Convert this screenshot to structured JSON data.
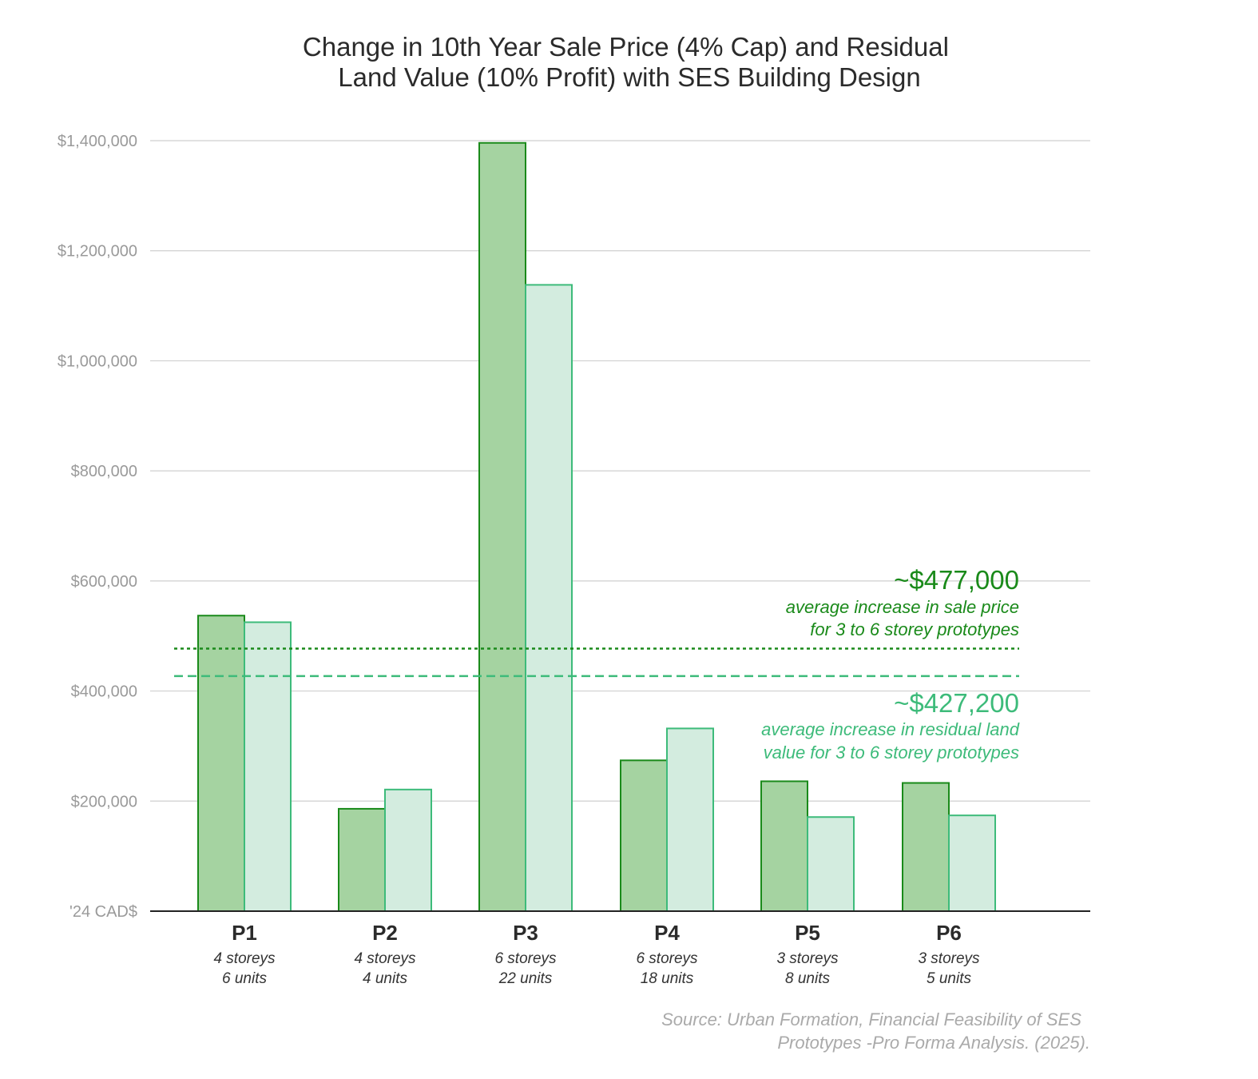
{
  "chart_data": {
    "type": "bar",
    "title": "Change in 10th Year Sale Price (4% Cap) and Residual Land Value (10% Profit) with SES Building Design",
    "title_lines": [
      "Change in 10th Year Sale Price (4% Cap) and Residual",
      "Land Value (10% Profit) with SES Building Design"
    ],
    "categories": [
      "P1",
      "P2",
      "P3",
      "P4",
      "P5",
      "P6"
    ],
    "category_details": [
      [
        "4 storeys",
        "6 units"
      ],
      [
        "4 storeys",
        "4 units"
      ],
      [
        "6 storeys",
        "22 units"
      ],
      [
        "6 storeys",
        "18 units"
      ],
      [
        "3 storeys",
        "8 units"
      ],
      [
        "3 storeys",
        "5 units"
      ]
    ],
    "series": [
      {
        "values": [
          537000,
          186000,
          1396000,
          274000,
          236000,
          233000
        ],
        "fill": "#a5d3a1",
        "stroke": "#1a8a1a"
      },
      {
        "values": [
          525000,
          221000,
          1138000,
          332000,
          171000,
          174000
        ],
        "fill": "#d3ecdf",
        "stroke": "#3dbb7a"
      }
    ],
    "ylim": [
      0,
      1400000
    ],
    "yticks": [
      0,
      200000,
      400000,
      600000,
      800000,
      1000000,
      1200000,
      1400000
    ],
    "ytick_labels": [
      "'24 CAD$",
      "$200,000",
      "$400,000",
      "$600,000",
      "$800,000",
      "$1,000,000",
      "$1,200,000",
      "$1,400,000"
    ],
    "grid": true,
    "reference_lines": [
      {
        "value": 477000,
        "style": "dotted",
        "color": "#1a8a1a",
        "label": "~$477,000",
        "description": [
          "average increase in sale price",
          "for 3 to 6 storey prototypes"
        ]
      },
      {
        "value": 427200,
        "style": "dashed",
        "color": "#3dbb7a",
        "label": "~$427,200",
        "description": [
          "average increase in residual land",
          "value for 3 to 6 storey prototypes"
        ]
      }
    ],
    "source": [
      "Source: Urban Formation, Financial Feasibility of SES",
      "Prototypes -Pro Forma Analysis. (2025)."
    ]
  }
}
